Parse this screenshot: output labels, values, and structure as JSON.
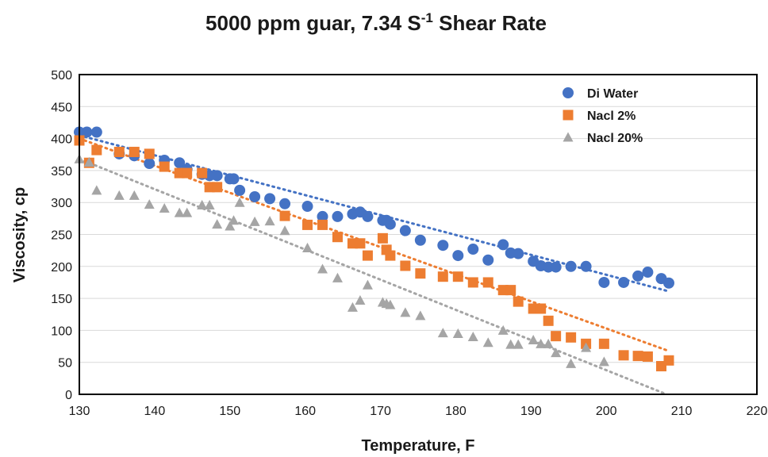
{
  "chart_data": {
    "type": "scatter",
    "title": "5000 ppm guar, 7.34 S",
    "title_superscript": "-1",
    "title_suffix": " Shear Rate",
    "xlabel": "Temperature, F",
    "ylabel": "Viscosity, cp",
    "xlim": [
      130,
      220
    ],
    "ylim": [
      0,
      500
    ],
    "x_ticks": [
      "130",
      "140",
      "150",
      "160",
      "170",
      "180",
      "190",
      "200",
      "210",
      "220"
    ],
    "y_ticks": [
      "0",
      "50",
      "100",
      "150",
      "200",
      "250",
      "300",
      "350",
      "400",
      "450",
      "500"
    ],
    "x_tick_values": [
      130,
      140,
      150,
      160,
      170,
      180,
      190,
      200,
      210,
      220
    ],
    "y_tick_values": [
      0,
      50,
      100,
      150,
      200,
      250,
      300,
      350,
      400,
      450,
      500
    ],
    "grid": "horizontal",
    "legend_position": "top-right",
    "series": [
      {
        "name": "Di Water",
        "marker": "circle",
        "color": "#4472C4",
        "trendline": [
          [
            130,
            405
          ],
          [
            208,
            162
          ]
        ],
        "points": [
          [
            130,
            410
          ],
          [
            131,
            410
          ],
          [
            132.3,
            410
          ],
          [
            135.3,
            376
          ],
          [
            137.3,
            373
          ],
          [
            139.3,
            361
          ],
          [
            141.3,
            366
          ],
          [
            143.3,
            362
          ],
          [
            144.3,
            352
          ],
          [
            146.3,
            344
          ],
          [
            147.3,
            342
          ],
          [
            148.3,
            342
          ],
          [
            150,
            337
          ],
          [
            150.5,
            337
          ],
          [
            151.3,
            319
          ],
          [
            153.3,
            309
          ],
          [
            155.3,
            306
          ],
          [
            157.3,
            298
          ],
          [
            160.3,
            294
          ],
          [
            162.3,
            278
          ],
          [
            164.3,
            278
          ],
          [
            166.3,
            282
          ],
          [
            167.3,
            285
          ],
          [
            168.3,
            278
          ],
          [
            170.3,
            272
          ],
          [
            170.8,
            272
          ],
          [
            171.3,
            266
          ],
          [
            173.3,
            256
          ],
          [
            175.3,
            241
          ],
          [
            178.3,
            233
          ],
          [
            180.3,
            217
          ],
          [
            182.3,
            227
          ],
          [
            184.3,
            210
          ],
          [
            186.3,
            234
          ],
          [
            187.3,
            221
          ],
          [
            188.3,
            220
          ],
          [
            190.3,
            208
          ],
          [
            191.3,
            201
          ],
          [
            192.3,
            199
          ],
          [
            193.3,
            199
          ],
          [
            195.3,
            200
          ],
          [
            197.3,
            200
          ],
          [
            199.7,
            175
          ],
          [
            202.3,
            175
          ],
          [
            204.2,
            185
          ],
          [
            205.5,
            191
          ],
          [
            207.3,
            181
          ],
          [
            208.3,
            174
          ]
        ]
      },
      {
        "name": "Nacl 2%",
        "marker": "square",
        "color": "#ED7D31",
        "trendline": [
          [
            130,
            400
          ],
          [
            208,
            69
          ]
        ],
        "points": [
          [
            130,
            397
          ],
          [
            131.3,
            362
          ],
          [
            132.3,
            382
          ],
          [
            135.3,
            379
          ],
          [
            137.3,
            379
          ],
          [
            139.3,
            376
          ],
          [
            141.3,
            356
          ],
          [
            143.3,
            346
          ],
          [
            144.3,
            346
          ],
          [
            146.3,
            346
          ],
          [
            147.3,
            324
          ],
          [
            148.3,
            324
          ],
          [
            157.3,
            279
          ],
          [
            160.3,
            265
          ],
          [
            162.3,
            265
          ],
          [
            164.3,
            246
          ],
          [
            166.3,
            236
          ],
          [
            167.3,
            236
          ],
          [
            168.3,
            217
          ],
          [
            170.3,
            244
          ],
          [
            170.8,
            226
          ],
          [
            171.3,
            217
          ],
          [
            173.3,
            201
          ],
          [
            175.3,
            189
          ],
          [
            178.3,
            184
          ],
          [
            180.3,
            184
          ],
          [
            182.3,
            175
          ],
          [
            184.3,
            175
          ],
          [
            186.3,
            163
          ],
          [
            187.3,
            163
          ],
          [
            188.3,
            145
          ],
          [
            190.3,
            134
          ],
          [
            191.3,
            134
          ],
          [
            192.3,
            115
          ],
          [
            193.3,
            91
          ],
          [
            195.3,
            89
          ],
          [
            197.3,
            79
          ],
          [
            199.7,
            79
          ],
          [
            202.3,
            61
          ],
          [
            204.2,
            60
          ],
          [
            205.5,
            59
          ],
          [
            207.3,
            44
          ],
          [
            208.3,
            53
          ]
        ]
      },
      {
        "name": "Nacl 20%",
        "marker": "triangle",
        "color": "#A5A5A5",
        "trendline": [
          [
            130,
            368
          ],
          [
            208,
            0
          ]
        ],
        "points": [
          [
            130,
            368
          ],
          [
            131.3,
            363
          ],
          [
            132.3,
            319
          ],
          [
            135.3,
            311
          ],
          [
            137.3,
            311
          ],
          [
            139.3,
            297
          ],
          [
            141.3,
            291
          ],
          [
            143.3,
            284
          ],
          [
            144.3,
            284
          ],
          [
            146.3,
            296
          ],
          [
            147.3,
            296
          ],
          [
            148.3,
            266
          ],
          [
            150,
            263
          ],
          [
            150.5,
            272
          ],
          [
            151.3,
            300
          ],
          [
            153.3,
            270
          ],
          [
            155.3,
            271
          ],
          [
            157.3,
            256
          ],
          [
            160.3,
            229
          ],
          [
            162.3,
            196
          ],
          [
            164.3,
            182
          ],
          [
            166.3,
            136
          ],
          [
            167.3,
            147
          ],
          [
            168.3,
            171
          ],
          [
            170.3,
            144
          ],
          [
            170.8,
            142
          ],
          [
            171.3,
            140
          ],
          [
            173.3,
            128
          ],
          [
            175.3,
            123
          ],
          [
            178.3,
            96
          ],
          [
            180.3,
            95
          ],
          [
            182.3,
            90
          ],
          [
            184.3,
            81
          ],
          [
            186.3,
            100
          ],
          [
            187.3,
            78
          ],
          [
            188.3,
            78
          ],
          [
            190.3,
            85
          ],
          [
            191.3,
            79
          ],
          [
            192.3,
            79
          ],
          [
            193.3,
            65
          ],
          [
            195.3,
            48
          ],
          [
            197.3,
            73
          ],
          [
            199.7,
            51
          ]
        ]
      }
    ]
  }
}
